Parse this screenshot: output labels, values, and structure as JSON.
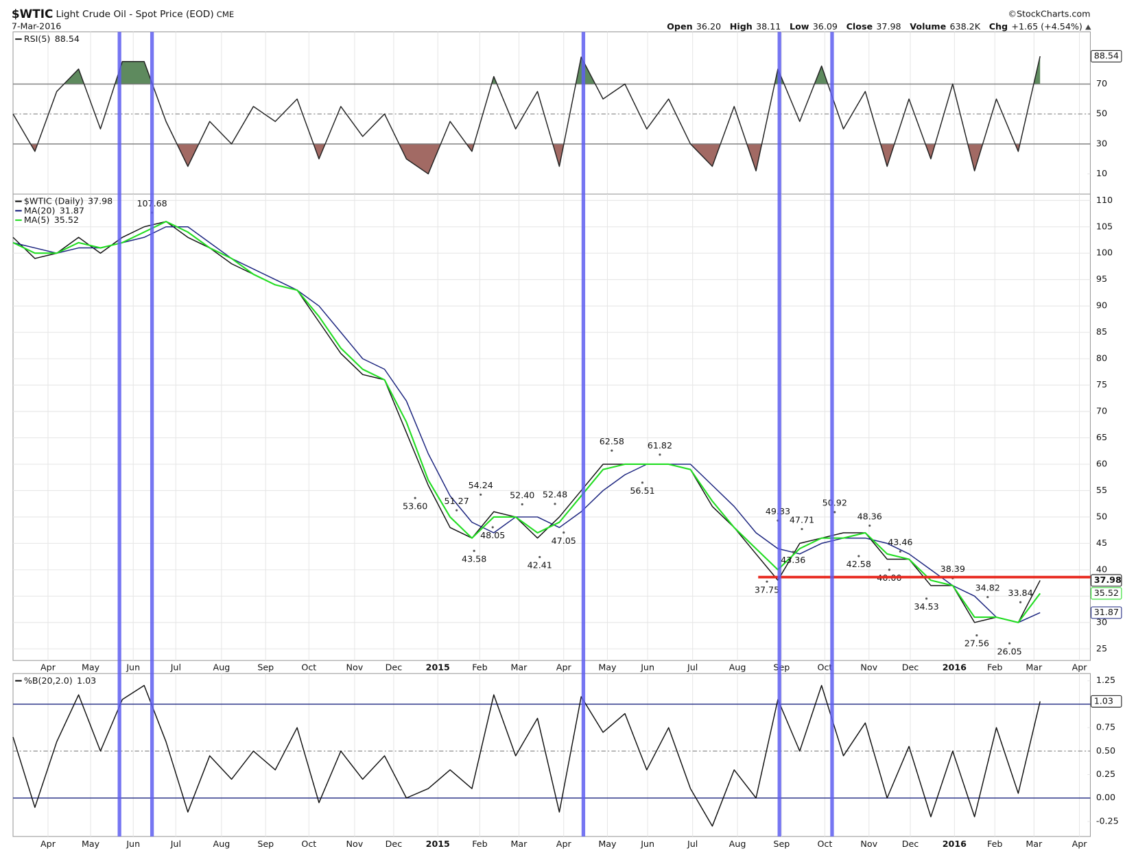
{
  "header": {
    "symbol": "$WTIC",
    "name": "Light Crude Oil - Spot Price (EOD)",
    "exchange": "CME",
    "date": "7-Mar-2016",
    "source": "©StockCharts.com",
    "quote": [
      {
        "label": "Open",
        "value": "36.20"
      },
      {
        "label": "High",
        "value": "38.11"
      },
      {
        "label": "Low",
        "value": "36.09"
      },
      {
        "label": "Close",
        "value": "37.98"
      },
      {
        "label": "Volume",
        "value": "638.2K"
      },
      {
        "label": "Chg",
        "value": "+1.65 (+4.54%)"
      }
    ]
  },
  "vlines": {
    "color": "#5f5ff0",
    "x": [
      4.87,
      6.36,
      26.1,
      35.07,
      37.48
    ]
  },
  "chart_data": [
    {
      "type": "line",
      "xlim": [
        0,
        49.3
      ],
      "ylim": [
        -3.5,
        104.8
      ],
      "yticks": [
        10,
        30,
        50,
        70
      ],
      "grid": false,
      "levels": [
        {
          "value": 70,
          "color": "#777",
          "dash": false,
          "fill": "#5e8a5e",
          "side": "above"
        },
        {
          "value": 50,
          "color": "#999",
          "dash": true
        },
        {
          "value": 30,
          "color": "#777",
          "dash": false,
          "fill": "#a26a64",
          "side": "below"
        }
      ],
      "series": [
        {
          "name": "RSI(5)",
          "color": "#222",
          "values": [
            50,
            25,
            65,
            80,
            40,
            85,
            85,
            45,
            15,
            45,
            30,
            55,
            45,
            60,
            20,
            55,
            35,
            50,
            20,
            10,
            45,
            25,
            75,
            40,
            65,
            15,
            88,
            60,
            70,
            40,
            60,
            30,
            15,
            55,
            12,
            80,
            45,
            82,
            40,
            65,
            15,
            60,
            20,
            70,
            12,
            60,
            25,
            88.54
          ]
        }
      ]
    },
    {
      "type": "line",
      "xlim": [
        0,
        49.3
      ],
      "ylim": [
        22.8,
        111.2
      ],
      "yticks": [
        25,
        30,
        35,
        40,
        45,
        50,
        55,
        60,
        65,
        70,
        75,
        80,
        85,
        90,
        95,
        100,
        105,
        110
      ],
      "grid": true,
      "xticks": [
        {
          "value": 1.6,
          "label": "Apr"
        },
        {
          "value": 3.55,
          "label": "May"
        },
        {
          "value": 5.5,
          "label": "Jun"
        },
        {
          "value": 7.45,
          "label": "Jul"
        },
        {
          "value": 9.54,
          "label": "Aug"
        },
        {
          "value": 11.56,
          "label": "Sep"
        },
        {
          "value": 13.54,
          "label": "Oct"
        },
        {
          "value": 15.63,
          "label": "Nov"
        },
        {
          "value": 17.42,
          "label": "Dec"
        },
        {
          "value": 19.44,
          "label": "2015"
        },
        {
          "value": 21.36,
          "label": "Feb"
        },
        {
          "value": 23.15,
          "label": "Mar"
        },
        {
          "value": 25.2,
          "label": "Apr"
        },
        {
          "value": 27.2,
          "label": "May"
        },
        {
          "value": 29.04,
          "label": "Jun"
        },
        {
          "value": 31.1,
          "label": "Jul"
        },
        {
          "value": 33.15,
          "label": "Aug"
        },
        {
          "value": 35.17,
          "label": "Sep"
        },
        {
          "value": 37.15,
          "label": "Oct"
        },
        {
          "value": 39.17,
          "label": "Nov"
        },
        {
          "value": 41.06,
          "label": "Dec"
        },
        {
          "value": 43.08,
          "label": "2016"
        },
        {
          "value": 44.93,
          "label": "Feb"
        },
        {
          "value": 46.72,
          "label": "Mar"
        },
        {
          "value": 48.8,
          "label": "Apr"
        }
      ],
      "series": [
        {
          "name": "$WTIC (Daily)",
          "color": "#111",
          "values": [
            103,
            99,
            100,
            103,
            100,
            103,
            105,
            106,
            103,
            101,
            98,
            96,
            94,
            93,
            87,
            81,
            77,
            76,
            66,
            56,
            48,
            46,
            51,
            50,
            46,
            50,
            55,
            60,
            60,
            60,
            60,
            59,
            52,
            48,
            43,
            38,
            45,
            46,
            47,
            47,
            42,
            42,
            37,
            37,
            30,
            31,
            30,
            37.98
          ]
        },
        {
          "name": "MA(20)",
          "color": "#1a237e",
          "values": [
            102,
            101,
            100,
            101,
            101,
            102,
            103,
            105,
            105,
            102,
            99,
            97,
            95,
            93,
            90,
            85,
            80,
            78,
            72,
            62,
            54,
            49,
            47,
            50,
            50,
            48,
            51,
            55,
            58,
            60,
            60,
            60,
            56,
            52,
            47,
            44,
            43,
            45,
            46,
            46,
            45,
            43,
            40,
            37,
            35,
            31,
            30,
            31.87
          ]
        },
        {
          "name": "MA(5)",
          "color": "#22dd22",
          "values": [
            102,
            100,
            100,
            102,
            101,
            102,
            104,
            106,
            104,
            101,
            99,
            96,
            94,
            93,
            88,
            82,
            78,
            76,
            68,
            57,
            50,
            46,
            50,
            50,
            47,
            49,
            54,
            59,
            60,
            60,
            60,
            59,
            53,
            48,
            44,
            40,
            44,
            46,
            46,
            47,
            43,
            42,
            38,
            37,
            31,
            31,
            30,
            35.52
          ]
        }
      ],
      "annotations": [
        {
          "label": "107.68",
          "value": 107.68,
          "x": 6.36,
          "side": "above"
        },
        {
          "label": "53.60",
          "value": 53.6,
          "x": 18.4,
          "side": "below"
        },
        {
          "label": "51.27",
          "value": 51.27,
          "x": 20.3,
          "side": "above"
        },
        {
          "label": "54.24",
          "value": 54.24,
          "x": 21.4,
          "side": "above"
        },
        {
          "label": "48.05",
          "value": 48.05,
          "x": 21.95,
          "side": "below"
        },
        {
          "label": "43.58",
          "value": 43.58,
          "x": 21.1,
          "side": "below"
        },
        {
          "label": "52.40",
          "value": 52.4,
          "x": 23.3,
          "side": "above"
        },
        {
          "label": "52.48",
          "value": 52.48,
          "x": 24.8,
          "side": "above"
        },
        {
          "label": "42.41",
          "value": 42.41,
          "x": 24.1,
          "side": "below"
        },
        {
          "label": "47.05",
          "value": 47.05,
          "x": 25.2,
          "side": "below"
        },
        {
          "label": "62.58",
          "value": 62.58,
          "x": 27.4,
          "side": "above"
        },
        {
          "label": "61.82",
          "value": 61.82,
          "x": 29.6,
          "side": "above"
        },
        {
          "label": "56.51",
          "value": 56.51,
          "x": 28.8,
          "side": "below"
        },
        {
          "label": "49.33",
          "value": 49.33,
          "x": 35.0,
          "side": "above"
        },
        {
          "label": "47.71",
          "value": 47.71,
          "x": 36.1,
          "side": "above"
        },
        {
          "label": "43.36",
          "value": 43.36,
          "x": 35.7,
          "side": "below"
        },
        {
          "label": "37.75",
          "value": 37.75,
          "x": 34.5,
          "side": "below"
        },
        {
          "label": "50.92",
          "value": 50.92,
          "x": 37.6,
          "side": "above"
        },
        {
          "label": "48.36",
          "value": 48.36,
          "x": 39.2,
          "side": "above"
        },
        {
          "label": "42.58",
          "value": 42.58,
          "x": 38.7,
          "side": "below"
        },
        {
          "label": "43.46",
          "value": 43.46,
          "x": 40.6,
          "side": "above"
        },
        {
          "label": "40.00",
          "value": 40,
          "x": 40.1,
          "side": "below"
        },
        {
          "label": "38.39",
          "value": 38.39,
          "x": 43.0,
          "side": "above"
        },
        {
          "label": "34.53",
          "value": 34.53,
          "x": 41.8,
          "side": "below"
        },
        {
          "label": "34.82",
          "value": 34.82,
          "x": 44.6,
          "side": "above"
        },
        {
          "label": "33.84",
          "value": 33.84,
          "x": 46.1,
          "side": "above"
        },
        {
          "label": "27.56",
          "value": 27.56,
          "x": 44.1,
          "side": "below"
        },
        {
          "label": "26.05",
          "value": 26.05,
          "x": 45.6,
          "side": "below"
        }
      ],
      "hline": {
        "value": 38.6,
        "from": 34.1,
        "to": 49.3,
        "color": "#e8281e"
      }
    },
    {
      "type": "line",
      "xlim": [
        0,
        49.3
      ],
      "ylim": [
        -0.41,
        1.327
      ],
      "yticks": [
        -0.25,
        {
          "value": 0,
          "label": "0.00"
        },
        0.25,
        {
          "value": 0.5,
          "label": "0.50"
        },
        0.75,
        {
          "value": 1,
          "label": "1.00"
        },
        1.25
      ],
      "grid": false,
      "xticks": [
        {
          "value": 1.6,
          "label": "Apr"
        },
        {
          "value": 3.55,
          "label": "May"
        },
        {
          "value": 5.5,
          "label": "Jun"
        },
        {
          "value": 7.45,
          "label": "Jul"
        },
        {
          "value": 9.54,
          "label": "Aug"
        },
        {
          "value": 11.56,
          "label": "Sep"
        },
        {
          "value": 13.54,
          "label": "Oct"
        },
        {
          "value": 15.63,
          "label": "Nov"
        },
        {
          "value": 17.42,
          "label": "Dec"
        },
        {
          "value": 19.44,
          "label": "2015"
        },
        {
          "value": 21.36,
          "label": "Feb"
        },
        {
          "value": 23.15,
          "label": "Mar"
        },
        {
          "value": 25.2,
          "label": "Apr"
        },
        {
          "value": 27.2,
          "label": "May"
        },
        {
          "value": 29.04,
          "label": "Jun"
        },
        {
          "value": 31.1,
          "label": "Jul"
        },
        {
          "value": 33.15,
          "label": "Aug"
        },
        {
          "value": 35.17,
          "label": "Sep"
        },
        {
          "value": 37.15,
          "label": "Oct"
        },
        {
          "value": 39.17,
          "label": "Nov"
        },
        {
          "value": 41.06,
          "label": "Dec"
        },
        {
          "value": 43.08,
          "label": "2016"
        },
        {
          "value": 44.93,
          "label": "Feb"
        },
        {
          "value": 46.72,
          "label": "Mar"
        },
        {
          "value": 48.8,
          "label": "Apr"
        }
      ],
      "levels": [
        {
          "value": 1,
          "color": "#1a237e",
          "dash": false
        },
        {
          "value": 0.5,
          "color": "#999",
          "dash": true
        },
        {
          "value": 0,
          "color": "#1a237e",
          "dash": false
        }
      ],
      "series": [
        {
          "name": "%B(20,2.0)",
          "color": "#111",
          "values": [
            0.65,
            -0.1,
            0.6,
            1.1,
            0.5,
            1.05,
            1.2,
            0.6,
            -0.15,
            0.45,
            0.2,
            0.5,
            0.3,
            0.75,
            -0.05,
            0.5,
            0.2,
            0.45,
            0,
            0.1,
            0.3,
            0.1,
            1.1,
            0.45,
            0.85,
            -0.15,
            1.08,
            0.7,
            0.9,
            0.3,
            0.75,
            0.1,
            -0.3,
            0.3,
            0,
            1.05,
            0.5,
            1.2,
            0.45,
            0.8,
            0,
            0.55,
            -0.2,
            0.5,
            -0.2,
            0.75,
            0.05,
            1.03
          ]
        }
      ]
    }
  ]
}
